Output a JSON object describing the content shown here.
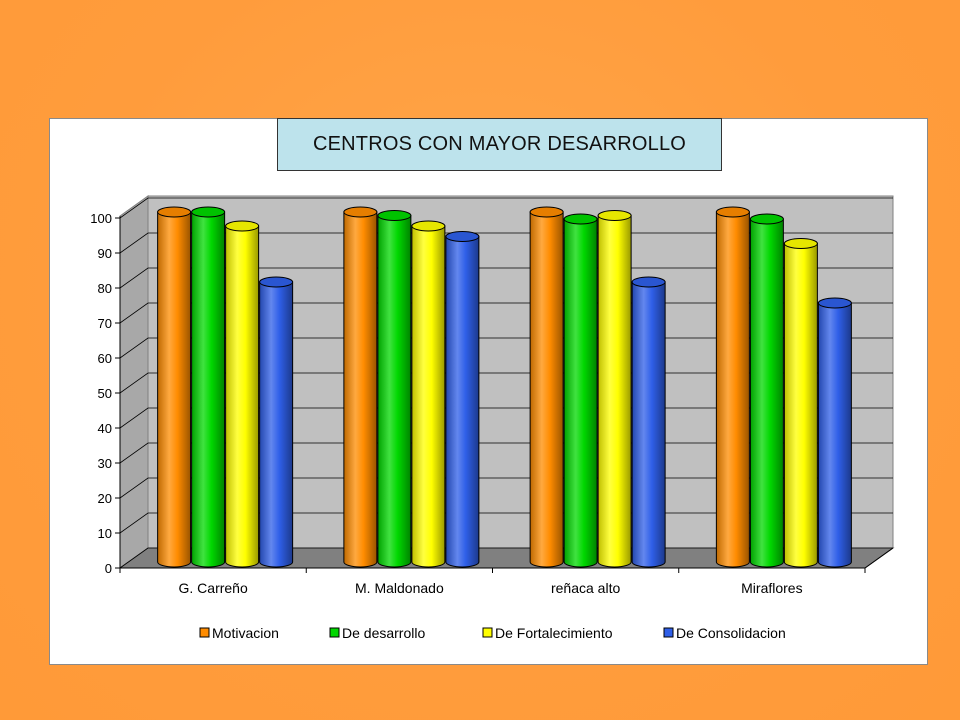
{
  "chart_data": {
    "type": "bar",
    "title": "CENTROS CON MAYOR DESARROLLO",
    "categories": [
      "G. Carreño",
      "M. Maldonado",
      "reñaca alto",
      "Miraflores"
    ],
    "series": [
      {
        "name": "Motivacion",
        "color": "#FF8C00",
        "values": [
          100,
          100,
          100,
          100
        ]
      },
      {
        "name": "De desarrollo",
        "color": "#00D800",
        "values": [
          100,
          99,
          98,
          98
        ]
      },
      {
        "name": "De Fortalecimiento",
        "color": "#FFFF00",
        "values": [
          96,
          96,
          99,
          91
        ]
      },
      {
        "name": "De Consolidacion",
        "color": "#2F5FE8",
        "values": [
          80,
          93,
          80,
          74
        ]
      }
    ],
    "yticks": [
      0,
      10,
      20,
      30,
      40,
      50,
      60,
      70,
      80,
      90,
      100
    ],
    "ylim": [
      0,
      100
    ],
    "grid": true,
    "legend": "bottom"
  }
}
